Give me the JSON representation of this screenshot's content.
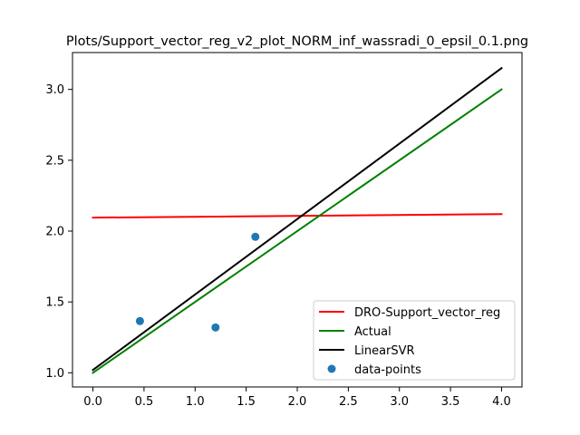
{
  "chart_data": {
    "type": "line",
    "title": "Plots/Support_vector_reg_v2_plot_NORM_inf_wassradi_0_epsil_0.1.png",
    "xlabel": "",
    "ylabel": "",
    "xlim": [
      -0.2,
      4.2
    ],
    "ylim": [
      0.9,
      3.26
    ],
    "xticks": [
      0.0,
      0.5,
      1.0,
      1.5,
      2.0,
      2.5,
      3.0,
      3.5,
      4.0
    ],
    "xtick_labels": [
      "0.0",
      "0.5",
      "1.0",
      "1.5",
      "2.0",
      "2.5",
      "3.0",
      "3.5",
      "4.0"
    ],
    "yticks": [
      1.0,
      1.5,
      2.0,
      2.5,
      3.0
    ],
    "ytick_labels": [
      "1.0",
      "1.5",
      "2.0",
      "2.5",
      "3.0"
    ],
    "grid": false,
    "legend_position": "lower-right",
    "series": [
      {
        "name": "DRO-Support_vector_reg",
        "type": "line",
        "color": "#ff0000",
        "x": [
          0.0,
          4.0
        ],
        "y": [
          2.095,
          2.12
        ]
      },
      {
        "name": "Actual",
        "type": "line",
        "color": "#008000",
        "x": [
          0.0,
          4.0
        ],
        "y": [
          1.0,
          3.0
        ]
      },
      {
        "name": "LinearSVR",
        "type": "line",
        "color": "#000000",
        "x": [
          0.0,
          4.0
        ],
        "y": [
          1.02,
          3.15
        ]
      },
      {
        "name": "data-points",
        "type": "scatter",
        "color": "#1f77b4",
        "x": [
          0.46,
          1.2,
          1.59
        ],
        "y": [
          1.365,
          1.32,
          1.96
        ]
      }
    ]
  }
}
